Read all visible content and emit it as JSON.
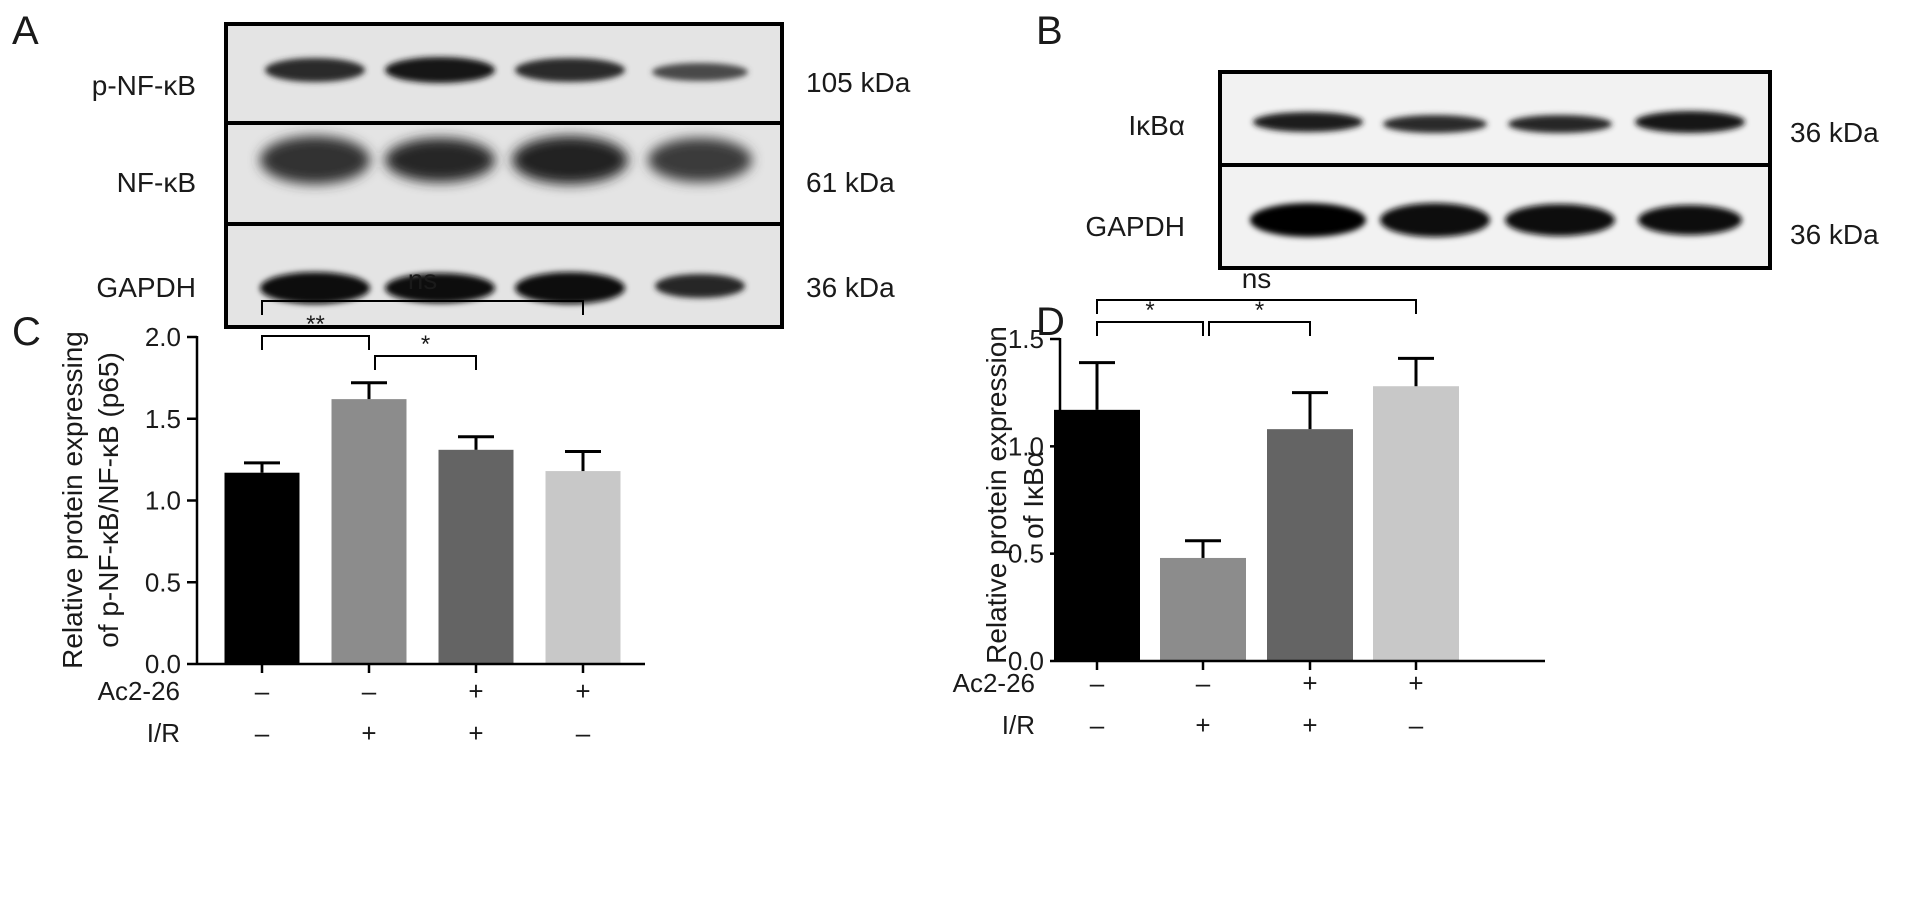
{
  "panel_a": {
    "label": "A",
    "rows": [
      {
        "name": "p-NF-κB",
        "size": "105 kDa"
      },
      {
        "name": "NF-κB",
        "size": "61 kDa"
      },
      {
        "name": "GAPDH",
        "size": "36 kDa"
      }
    ]
  },
  "panel_b": {
    "label": "B",
    "rows": [
      {
        "name": "IκBα",
        "size": "36 kDa"
      },
      {
        "name": "GAPDH",
        "size": "36 kDa"
      }
    ]
  },
  "chart_data": [
    {
      "panel": "C",
      "type": "bar",
      "ylabel_lines": [
        "Relative protein expressing",
        "of p-NF-κB/NF-κB (p65)"
      ],
      "ylim": [
        0,
        2.0
      ],
      "yticks": [
        "0.0",
        "0.5",
        "1.0",
        "1.5",
        "2.0"
      ],
      "values": [
        1.17,
        1.62,
        1.31,
        1.18
      ],
      "errors": [
        0.06,
        0.1,
        0.08,
        0.12
      ],
      "colors": [
        "#000000",
        "#8c8c8c",
        "#646464",
        "#c8c8c8"
      ],
      "factors": [
        {
          "label": "Ac2-26",
          "values": [
            "–",
            "–",
            "+",
            "+"
          ]
        },
        {
          "label": "I/R",
          "values": [
            "–",
            "+",
            "+",
            "–"
          ]
        }
      ],
      "brackets": [
        {
          "from": 0,
          "to": 1,
          "label": "**"
        },
        {
          "from": 1,
          "to": 2,
          "label": "*"
        },
        {
          "from": 0,
          "to": 3,
          "label": "ns"
        }
      ]
    },
    {
      "panel": "D",
      "type": "bar",
      "ylabel_lines": [
        "Relative protein expression",
        "of IκBα"
      ],
      "ylim": [
        0,
        1.5
      ],
      "yticks": [
        "0.0",
        "0.5",
        "1.0",
        "1.5"
      ],
      "values": [
        1.17,
        0.48,
        1.08,
        1.28
      ],
      "errors": [
        0.22,
        0.08,
        0.17,
        0.13
      ],
      "colors": [
        "#000000",
        "#8c8c8c",
        "#646464",
        "#c8c8c8"
      ],
      "factors": [
        {
          "label": "Ac2-26",
          "values": [
            "–",
            "–",
            "+",
            "+"
          ]
        },
        {
          "label": "I/R",
          "values": [
            "–",
            "+",
            "+",
            "–"
          ]
        }
      ],
      "brackets": [
        {
          "from": 0,
          "to": 1,
          "label": "*"
        },
        {
          "from": 1,
          "to": 2,
          "label": "*"
        },
        {
          "from": 0,
          "to": 3,
          "label": "ns"
        }
      ]
    }
  ]
}
